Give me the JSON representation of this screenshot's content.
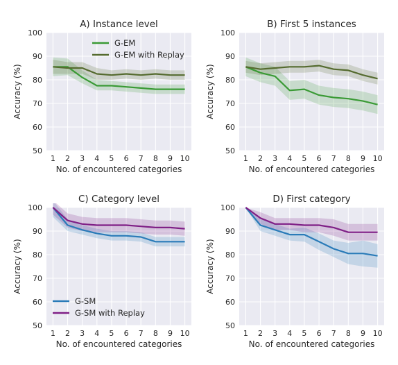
{
  "chart_data": [
    {
      "type": "line",
      "title": "A) Instance level",
      "xlabel": "No. of encountered categories",
      "ylabel": "Accuracy (%)",
      "x": [
        1,
        2,
        3,
        4,
        5,
        6,
        7,
        8,
        9,
        10
      ],
      "ylim": [
        50,
        100
      ],
      "yticks": [
        50,
        60,
        70,
        80,
        90,
        100
      ],
      "grid": true,
      "legend": "top-right",
      "series": [
        {
          "name": "G-EM",
          "color": "#3a9a35",
          "values": [
            85.5,
            85.5,
            81.0,
            77.5,
            77.5,
            77.0,
            76.5,
            76.0,
            76.0,
            76.0
          ],
          "lower": [
            81.5,
            82.0,
            78.5,
            75.5,
            75.5,
            75.0,
            74.5,
            74.0,
            74.0,
            74.0
          ],
          "upper": [
            89.5,
            89.0,
            84.0,
            80.0,
            79.5,
            79.0,
            78.5,
            78.0,
            78.0,
            78.0
          ]
        },
        {
          "name": "G-EM with Replay",
          "color": "#556b2f",
          "values": [
            85.5,
            85.0,
            85.0,
            82.5,
            82.0,
            82.5,
            82.0,
            82.5,
            82.0,
            82.0
          ],
          "lower": [
            82.5,
            82.5,
            82.5,
            80.0,
            80.0,
            80.5,
            80.0,
            80.5,
            80.0,
            80.0
          ],
          "upper": [
            88.5,
            87.5,
            87.5,
            85.0,
            84.0,
            84.5,
            84.0,
            84.5,
            84.0,
            84.0
          ]
        }
      ]
    },
    {
      "type": "line",
      "title": "B) First 5 instances",
      "xlabel": "No. of encountered categories",
      "ylabel": "Accuracy (%)",
      "x": [
        1,
        2,
        3,
        4,
        5,
        6,
        7,
        8,
        9,
        10
      ],
      "ylim": [
        50,
        100
      ],
      "yticks": [
        50,
        60,
        70,
        80,
        90,
        100
      ],
      "grid": true,
      "legend": "",
      "series": [
        {
          "name": "G-EM",
          "color": "#3a9a35",
          "values": [
            85.5,
            83.0,
            81.5,
            75.5,
            76.0,
            73.5,
            72.5,
            72.0,
            71.0,
            69.5
          ],
          "lower": [
            81.5,
            79.0,
            77.5,
            71.5,
            72.0,
            69.5,
            68.5,
            68.0,
            67.0,
            65.5
          ],
          "upper": [
            89.5,
            87.0,
            85.5,
            79.5,
            80.0,
            77.5,
            76.5,
            76.0,
            75.0,
            73.5
          ]
        },
        {
          "name": "G-EM with Replay",
          "color": "#556b2f",
          "values": [
            85.5,
            84.5,
            85.0,
            85.5,
            85.5,
            86.0,
            84.5,
            84.0,
            82.0,
            80.5
          ],
          "lower": [
            83.0,
            82.0,
            82.5,
            83.0,
            83.0,
            83.5,
            82.0,
            81.5,
            79.5,
            78.0
          ],
          "upper": [
            88.0,
            87.0,
            87.5,
            88.0,
            88.0,
            88.5,
            87.0,
            86.5,
            84.5,
            83.0
          ]
        }
      ]
    },
    {
      "type": "line",
      "title": "C) Category level",
      "xlabel": "No. of encountered categories",
      "ylabel": "Accuracy (%)",
      "x": [
        1,
        2,
        3,
        4,
        5,
        6,
        7,
        8,
        9,
        10
      ],
      "ylim": [
        50,
        100
      ],
      "yticks": [
        50,
        60,
        70,
        80,
        90,
        100
      ],
      "grid": true,
      "legend": "bottom-left",
      "series": [
        {
          "name": "G-SM",
          "color": "#2a7bb8",
          "values": [
            100.0,
            92.5,
            90.5,
            89.0,
            88.0,
            88.0,
            87.5,
            85.5,
            85.5,
            85.5
          ],
          "lower": [
            96.0,
            90.0,
            88.5,
            87.0,
            86.0,
            86.0,
            85.5,
            83.5,
            83.5,
            83.5
          ],
          "upper": [
            103.0,
            95.0,
            92.5,
            91.0,
            90.0,
            90.0,
            89.5,
            87.5,
            87.5,
            87.5
          ]
        },
        {
          "name": "G-SM with Replay",
          "color": "#7f1f86",
          "values": [
            100.0,
            94.5,
            93.0,
            92.5,
            92.5,
            92.5,
            92.0,
            91.5,
            91.5,
            91.0
          ],
          "lower": [
            97.0,
            91.5,
            90.0,
            89.5,
            89.5,
            89.5,
            89.0,
            88.5,
            88.5,
            88.0
          ],
          "upper": [
            103.0,
            97.5,
            96.0,
            95.5,
            95.5,
            95.5,
            95.0,
            94.5,
            94.5,
            94.0
          ]
        }
      ]
    },
    {
      "type": "line",
      "title": "D) First category",
      "xlabel": "No. of encountered categories",
      "ylabel": "Accuracy (%)",
      "x": [
        1,
        2,
        3,
        4,
        5,
        6,
        7,
        8,
        9,
        10
      ],
      "ylim": [
        50,
        100
      ],
      "yticks": [
        50,
        60,
        70,
        80,
        90,
        100
      ],
      "grid": true,
      "legend": "",
      "series": [
        {
          "name": "G-SM",
          "color": "#2a7bb8",
          "values": [
            100.0,
            92.5,
            90.5,
            88.5,
            88.5,
            85.5,
            82.5,
            80.5,
            80.5,
            79.5
          ],
          "lower": [
            100.0,
            90.0,
            88.0,
            86.0,
            85.5,
            82.0,
            79.0,
            76.0,
            75.0,
            74.5
          ],
          "upper": [
            100.0,
            95.0,
            93.0,
            91.0,
            91.5,
            89.0,
            86.0,
            85.0,
            86.0,
            84.5
          ]
        },
        {
          "name": "G-SM with Replay",
          "color": "#7f1f86",
          "values": [
            100.0,
            95.5,
            93.0,
            93.0,
            92.5,
            92.5,
            91.5,
            89.5,
            89.5,
            89.5
          ],
          "lower": [
            100.0,
            93.0,
            90.5,
            90.5,
            89.5,
            89.5,
            88.0,
            86.0,
            86.0,
            86.0
          ],
          "upper": [
            100.0,
            98.0,
            95.5,
            95.5,
            95.5,
            95.5,
            95.0,
            93.0,
            93.0,
            93.0
          ]
        }
      ]
    }
  ]
}
